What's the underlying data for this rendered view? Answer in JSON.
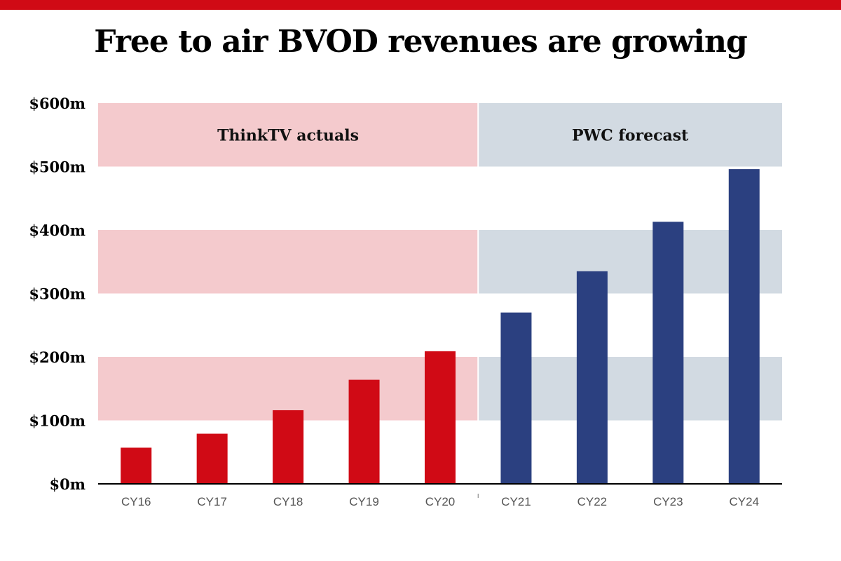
{
  "colors": {
    "top_bar": "#d00a15",
    "actual_bar": "#d00a15",
    "forecast_bar": "#2b4080",
    "actual_band": "#f4cacd",
    "forecast_band": "#d2dae2"
  },
  "chart_data": {
    "type": "bar",
    "title": "Free to air BVOD revenues are growing",
    "categories": [
      "CY16",
      "CY17",
      "CY18",
      "CY19",
      "CY20",
      "CY21",
      "CY22",
      "CY23",
      "CY24"
    ],
    "values": [
      57,
      79,
      116,
      164,
      209,
      270,
      335,
      413,
      496
    ],
    "forecast_from": "CY21",
    "ylim": [
      0,
      600
    ],
    "yticks": [
      {
        "value": 0,
        "label": "$0m"
      },
      {
        "value": 100,
        "label": "$100m"
      },
      {
        "value": 200,
        "label": "$200m"
      },
      {
        "value": 300,
        "label": "$300m"
      },
      {
        "value": 400,
        "label": "$400m"
      },
      {
        "value": 500,
        "label": "$500m"
      },
      {
        "value": 600,
        "label": "$600m"
      }
    ],
    "bands": [
      {
        "name": "actuals",
        "label": "ThinkTV actuals",
        "from": "CY16",
        "to": "CY20"
      },
      {
        "name": "forecast",
        "label": "PWC forecast",
        "from": "CY21",
        "to": "CY24"
      }
    ],
    "grid": "alternating horizontal bands",
    "legend": "none"
  }
}
